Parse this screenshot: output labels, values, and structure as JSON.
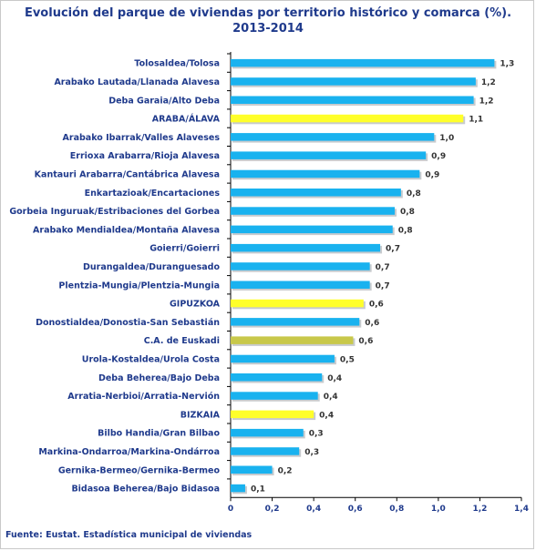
{
  "chart_data": {
    "type": "bar",
    "orientation": "horizontal",
    "title_lines": [
      "Evolución del parque de viviendas por territorio histórico y comarca (%).",
      "2013-2014"
    ],
    "categories": [
      "Tolosaldea/Tolosa",
      "Arabako Lautada/Llanada Alavesa",
      "Deba Garaia/Alto Deba",
      "ARABA/ÁLAVA",
      "Arabako Ibarrak/Valles Alaveses",
      "Errioxa Arabarra/Rioja Alavesa",
      "Kantauri Arabarra/Cantábrica Alavesa",
      "Enkartazioak/Encartaciones",
      "Gorbeia Inguruak/Estribaciones del Gorbea",
      "Arabako Mendialdea/Montaña Alavesa",
      "Goierri/Goierri",
      "Durangaldea/Duranguesado",
      "Plentzia-Mungia/Plentzia-Mungia",
      "GIPUZKOA",
      "Donostialdea/Donostia-San Sebastián",
      "C.A. de Euskadi",
      "Urola-Kostaldea/Urola Costa",
      "Deba Beherea/Bajo Deba",
      "Arratia-Nerbioi/Arratia-Nervión",
      "BIZKAIA",
      "Bilbo Handia/Gran Bilbao",
      "Markina-Ondarroa/Markina-Ondárroa",
      "Gernika-Bermeo/Gernika-Bermeo",
      "Bidasoa Beherea/Bajo Bidasoa"
    ],
    "values": [
      1.27,
      1.18,
      1.17,
      1.12,
      0.98,
      0.94,
      0.91,
      0.82,
      0.79,
      0.78,
      0.72,
      0.67,
      0.67,
      0.64,
      0.62,
      0.59,
      0.5,
      0.44,
      0.42,
      0.4,
      0.35,
      0.33,
      0.2,
      0.07
    ],
    "value_labels": [
      "1,3",
      "1,2",
      "1,2",
      "1,1",
      "1,0",
      "0,9",
      "0,9",
      "0,8",
      "0,8",
      "0,8",
      "0,7",
      "0,7",
      "0,7",
      "0,6",
      "0,6",
      "0,6",
      "0,5",
      "0,4",
      "0,4",
      "0,4",
      "0,3",
      "0,3",
      "0,2",
      "0,1"
    ],
    "highlight": [
      "default",
      "default",
      "default",
      "territory",
      "default",
      "default",
      "default",
      "default",
      "default",
      "default",
      "default",
      "default",
      "default",
      "territory",
      "default",
      "total",
      "default",
      "default",
      "default",
      "territory",
      "default",
      "default",
      "default",
      "default"
    ],
    "colors": {
      "default": "#19b2ef",
      "territory": "#ffff2a",
      "total": "#c8c84a"
    },
    "xlim": [
      0,
      1.4
    ],
    "xticks": [
      0,
      0.2,
      0.4,
      0.6,
      0.8,
      1.0,
      1.2,
      1.4
    ],
    "xtick_labels": [
      "0",
      "0,2",
      "0,4",
      "0,6",
      "0,8",
      "1,0",
      "1,2",
      "1,4"
    ],
    "grid": false,
    "legend": "none",
    "source": "Fuente: Eustat. Estadística municipal de viviendas"
  }
}
